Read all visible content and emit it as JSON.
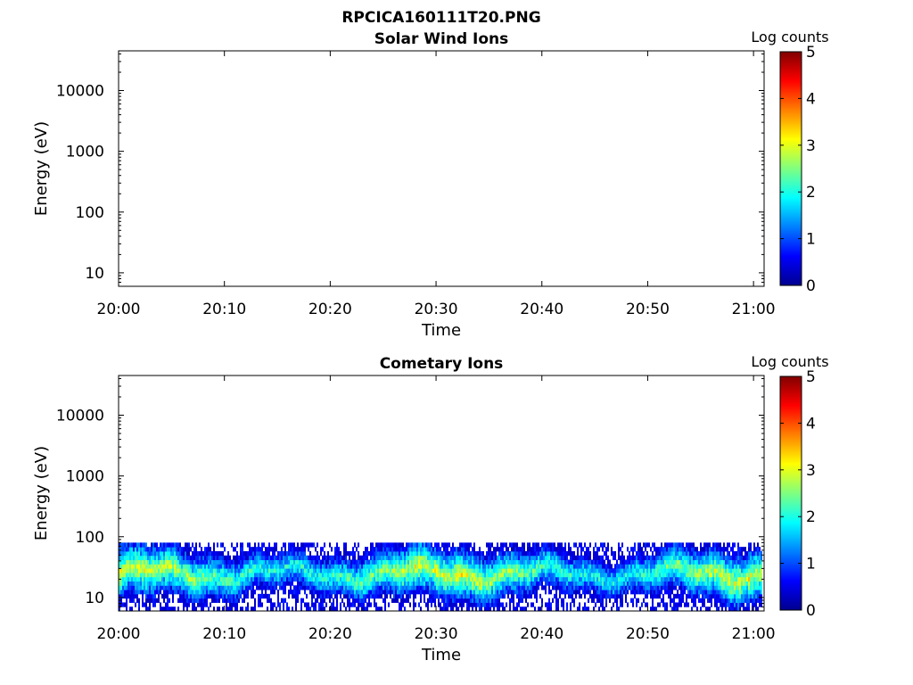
{
  "figure": {
    "title": "RPCICA160111T20.PNG"
  },
  "colorbar": {
    "label": "Log counts",
    "ticks": [
      "0",
      "1",
      "2",
      "3",
      "4",
      "5"
    ],
    "range": [
      0,
      5
    ],
    "colormap": "jet"
  },
  "chart_data": [
    {
      "type": "heatmap",
      "title": "Solar Wind Ions",
      "xlabel": "Time",
      "ylabel": "Energy (eV)",
      "x_ticks": [
        "20:00",
        "20:10",
        "20:20",
        "20:30",
        "20:40",
        "20:50",
        "21:00"
      ],
      "y_ticks": [
        "10",
        "100",
        "1000",
        "10000"
      ],
      "y_scale": "log",
      "ylim": [
        6,
        45000
      ],
      "xlim": [
        "20:00",
        "21:01"
      ],
      "grid": false,
      "has_data": false
    },
    {
      "type": "heatmap",
      "title": "Cometary Ions",
      "xlabel": "Time",
      "ylabel": "Energy (eV)",
      "x_ticks": [
        "20:00",
        "20:10",
        "20:20",
        "20:30",
        "20:40",
        "20:50",
        "21:00"
      ],
      "y_ticks": [
        "10",
        "100",
        "1000",
        "10000"
      ],
      "y_scale": "log",
      "ylim": [
        6,
        45000
      ],
      "xlim": [
        "20:00",
        "21:01"
      ],
      "grid": false,
      "has_data": true,
      "energy_range_ev": [
        6,
        80
      ],
      "peak_energy_ev": 25,
      "peak_log_counts_range": [
        2,
        3.2
      ]
    }
  ]
}
